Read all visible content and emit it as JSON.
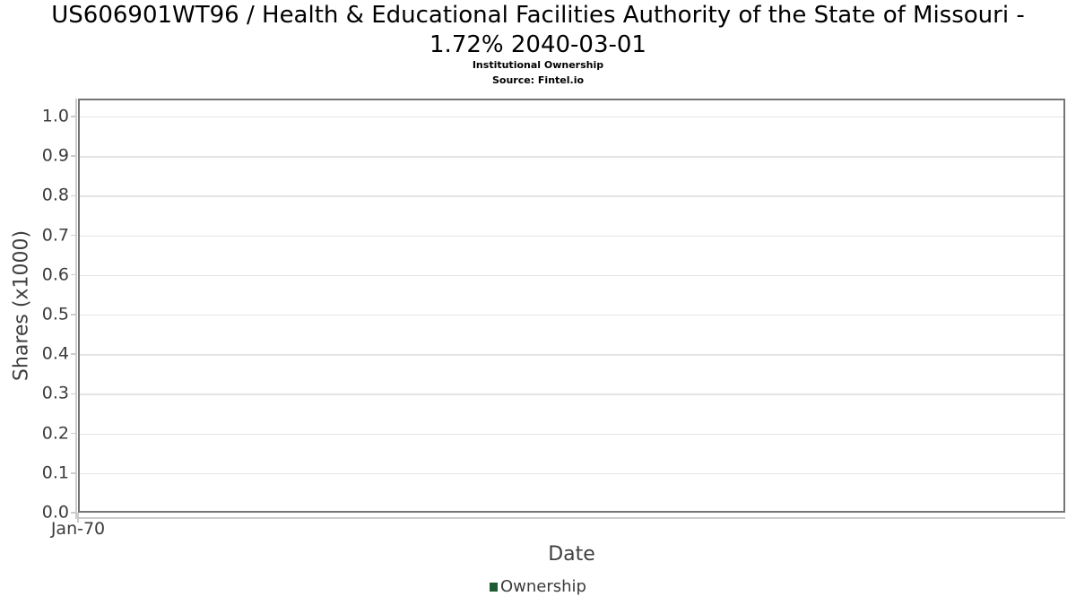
{
  "chart": {
    "title_lines": [
      "US606901WT96 / Health & Educational Facilities Authority of the State of Missouri -",
      "1.72% 2040-03-01"
    ],
    "subtitle": "Institutional Ownership",
    "source": "Source: Fintel.io"
  },
  "chart_data": {
    "type": "bar",
    "title": "US606901WT96 / Health & Educational Facilities Authority of the State of Missouri - 1.72% 2040-03-01",
    "subtitle": "Institutional Ownership",
    "source": "Source: Fintel.io",
    "xlabel": "Date",
    "ylabel": "Shares (x1000)",
    "ylim": [
      0,
      1.045
    ],
    "yticks": [
      0.0,
      0.1,
      0.2,
      0.3,
      0.4,
      0.5,
      0.6,
      0.7,
      0.8,
      0.9,
      1.0
    ],
    "ytick_labels": [
      "0.0",
      "0.1",
      "0.2",
      "0.3",
      "0.4",
      "0.5",
      "0.6",
      "0.7",
      "0.8",
      "0.9",
      "1.0"
    ],
    "xticks": [
      "Jan-70"
    ],
    "x": [],
    "series": [
      {
        "name": "Ownership",
        "color": "#1e5a33",
        "values": []
      }
    ],
    "grid": "horizontal",
    "legend_position": "bottom",
    "style": {
      "gridline_color": "#e4e4e4",
      "axis_border_color": "#757575",
      "tick_color": "#cccccc",
      "tick_label_color": "#3c3c3c",
      "axis_title_color": "#3f3f3f",
      "title_color": "#000000"
    }
  }
}
